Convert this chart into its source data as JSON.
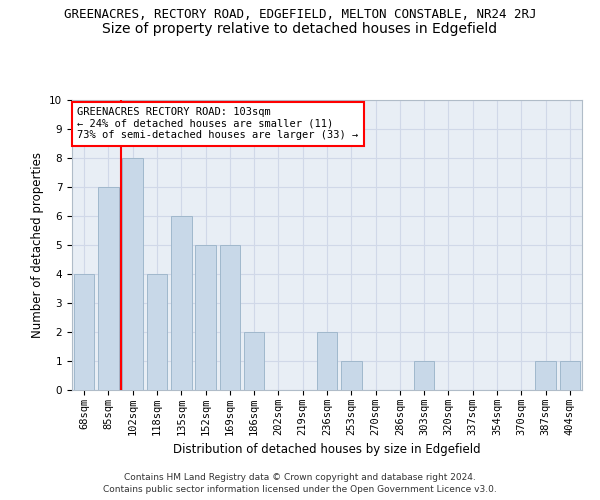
{
  "title": "GREENACRES, RECTORY ROAD, EDGEFIELD, MELTON CONSTABLE, NR24 2RJ",
  "subtitle": "Size of property relative to detached houses in Edgefield",
  "xlabel": "Distribution of detached houses by size in Edgefield",
  "ylabel": "Number of detached properties",
  "footer_line1": "Contains HM Land Registry data © Crown copyright and database right 2024.",
  "footer_line2": "Contains public sector information licensed under the Open Government Licence v3.0.",
  "categories": [
    "68sqm",
    "85sqm",
    "102sqm",
    "118sqm",
    "135sqm",
    "152sqm",
    "169sqm",
    "186sqm",
    "202sqm",
    "219sqm",
    "236sqm",
    "253sqm",
    "270sqm",
    "286sqm",
    "303sqm",
    "320sqm",
    "337sqm",
    "354sqm",
    "370sqm",
    "387sqm",
    "404sqm"
  ],
  "values": [
    4,
    7,
    8,
    4,
    6,
    5,
    5,
    2,
    0,
    0,
    2,
    1,
    0,
    0,
    1,
    0,
    0,
    0,
    0,
    1,
    1
  ],
  "bar_color": "#c8d8e8",
  "bar_edge_color": "#a0b8cc",
  "grid_color": "#d0d8e8",
  "background_color": "#e8eef5",
  "red_line_index": 2,
  "ylim": [
    0,
    10
  ],
  "yticks": [
    0,
    1,
    2,
    3,
    4,
    5,
    6,
    7,
    8,
    9,
    10
  ],
  "annotation_line1": "GREENACRES RECTORY ROAD: 103sqm",
  "annotation_line2": "← 24% of detached houses are smaller (11)",
  "annotation_line3": "73% of semi-detached houses are larger (33) →",
  "title_fontsize": 9,
  "subtitle_fontsize": 10,
  "label_fontsize": 8.5,
  "tick_fontsize": 7.5,
  "annotation_fontsize": 7.5,
  "footer_fontsize": 6.5
}
